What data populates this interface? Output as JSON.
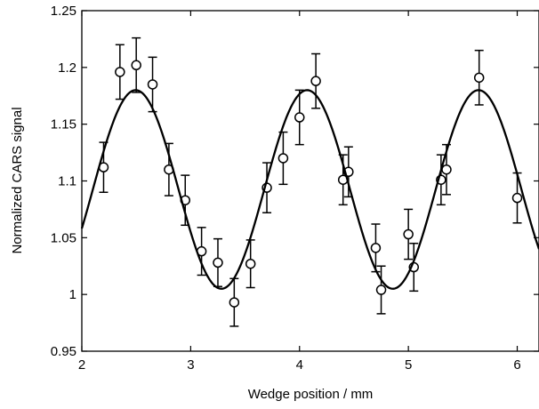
{
  "chart_data": {
    "type": "scatter",
    "title": "",
    "xlabel": "Wedge position / mm",
    "ylabel": "Normalized CARS signal",
    "xlim": [
      2,
      6.2
    ],
    "ylim": [
      0.95,
      1.25
    ],
    "xticks": [
      2,
      3,
      4,
      5,
      6
    ],
    "xtick_labels": [
      "2",
      "3",
      "4",
      "5",
      "6"
    ],
    "yticks": [
      0.95,
      1,
      1.05,
      1.1,
      1.15,
      1.2,
      1.25
    ],
    "ytick_labels": [
      "0.95",
      "1",
      "1.05",
      "1.1",
      "1.15",
      "1.2",
      "1.25"
    ],
    "grid": false,
    "legend": "none",
    "series": [
      {
        "marker": "open-circle",
        "x": [
          2.2,
          2.35,
          2.5,
          2.65,
          2.8,
          2.95,
          3.1,
          3.25,
          3.4,
          3.55,
          3.7,
          3.85,
          4.0,
          4.15,
          4.4,
          4.45,
          4.7,
          4.75,
          5.0,
          5.05,
          5.3,
          5.35,
          5.65,
          6.0
        ],
        "y": [
          1.112,
          1.196,
          1.202,
          1.185,
          1.11,
          1.083,
          1.038,
          1.028,
          0.993,
          1.027,
          1.094,
          1.12,
          1.156,
          1.188,
          1.101,
          1.108,
          1.041,
          1.004,
          1.053,
          1.024,
          1.101,
          1.11,
          1.191,
          1.085
        ],
        "yerr": [
          0.022,
          0.024,
          0.024,
          0.024,
          0.023,
          0.022,
          0.021,
          0.021,
          0.021,
          0.021,
          0.022,
          0.023,
          0.024,
          0.024,
          0.022,
          0.022,
          0.021,
          0.021,
          0.022,
          0.021,
          0.022,
          0.022,
          0.024,
          0.022
        ]
      },
      {
        "type": "line",
        "style": "solid",
        "fit": {
          "kind": "sinusoid",
          "offset": 1.0925,
          "amplitude": 0.0875,
          "period_mm": 1.575,
          "peak_x_mm": 2.495
        }
      }
    ]
  }
}
